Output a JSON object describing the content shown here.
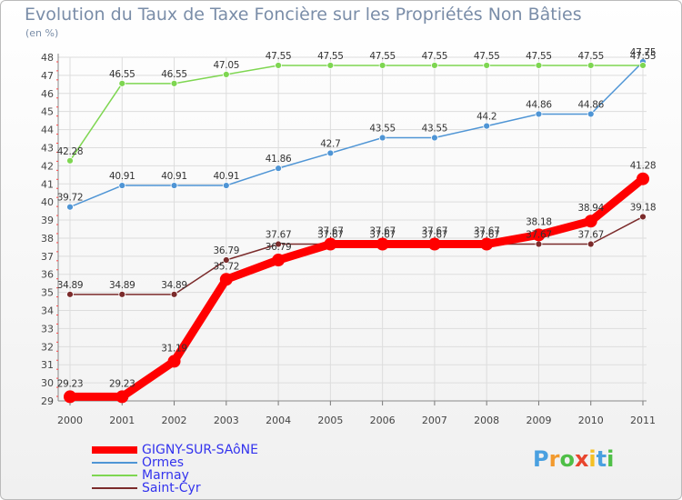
{
  "title": "Evolution du Taux de Taxe Foncière sur les Propriétés Non Bâties",
  "subtitle": "(en %)",
  "chart_data": {
    "type": "line",
    "title": "Evolution du Taux de Taxe Foncière sur les Propriétés Non Bâties",
    "ylabel": "(en %)",
    "xlabel": "",
    "x": [
      "2000",
      "2001",
      "2002",
      "2003",
      "2004",
      "2005",
      "2006",
      "2007",
      "2008",
      "2009",
      "2010",
      "2011"
    ],
    "ylim": [
      29,
      48
    ],
    "yticks": [
      29,
      30,
      31,
      32,
      33,
      34,
      35,
      36,
      37,
      38,
      39,
      40,
      41,
      42,
      43,
      44,
      45,
      46,
      47,
      48
    ],
    "grid": true,
    "legend_position": "bottom-left",
    "series": [
      {
        "name": "GIGNY-SUR-SAôNE",
        "color": "#ff0000",
        "values": [
          29.23,
          29.23,
          31.19,
          35.72,
          36.79,
          37.67,
          37.67,
          37.67,
          37.67,
          38.18,
          38.94,
          41.28
        ],
        "labels": [
          "29.23",
          "29.23",
          "31.19",
          "35.72",
          "36.79",
          "37.67",
          "37.67",
          "37.67",
          "37.67",
          "38.18",
          "38.94",
          "41.28"
        ]
      },
      {
        "name": "Ormes",
        "color": "#4f95d5",
        "values": [
          39.72,
          40.91,
          40.91,
          40.91,
          41.86,
          42.7,
          43.55,
          43.55,
          44.2,
          44.86,
          44.86,
          47.75
        ],
        "labels": [
          "39.72",
          "40.91",
          "40.91",
          "40.91",
          "41.86",
          "42.7",
          "43.55",
          "43.55",
          "44.2",
          "44.86",
          "44.86",
          "47.75"
        ]
      },
      {
        "name": "Marnay",
        "color": "#7ed651",
        "values": [
          42.28,
          46.55,
          46.55,
          47.05,
          47.55,
          47.55,
          47.55,
          47.55,
          47.55,
          47.55,
          47.55,
          47.55
        ],
        "labels": [
          "42.28",
          "46.55",
          "46.55",
          "47.05",
          "47.55",
          "47.55",
          "47.55",
          "47.55",
          "47.55",
          "47.55",
          "47.55",
          "47.55"
        ]
      },
      {
        "name": "Saint-Cyr",
        "color": "#7b2b2b",
        "values": [
          34.89,
          34.89,
          34.89,
          36.79,
          37.67,
          37.67,
          37.67,
          37.67,
          37.67,
          37.67,
          37.67,
          39.18
        ],
        "labels": [
          "34.89",
          "34.89",
          "34.89",
          "36.79",
          "37.67",
          "37.67",
          "37.67",
          "37.67",
          "37.67",
          "37.67",
          "37.67",
          "39.18"
        ]
      }
    ]
  },
  "legend": [
    {
      "label": "GIGNY-SUR-SAôNE",
      "color": "#ff0000",
      "text_color": "#3333ee",
      "style": "thick"
    },
    {
      "label": "Ormes",
      "color": "#4f95d5",
      "text_color": "#3333ee",
      "style": "thin"
    },
    {
      "label": "Marnay",
      "color": "#7ed651",
      "text_color": "#3333ee",
      "style": "thin"
    },
    {
      "label": "Saint-Cyr",
      "color": "#7b2b2b",
      "text_color": "#3333ee",
      "style": "thin"
    }
  ],
  "logo": {
    "letters": [
      "P",
      "r",
      "o",
      "x",
      "i",
      "t",
      "i"
    ],
    "colors": [
      "#4aa0e0",
      "#f29a2e",
      "#4fbf47",
      "#e8452e",
      "#f5c024",
      "#4aa0e0",
      "#4fbf47"
    ]
  }
}
